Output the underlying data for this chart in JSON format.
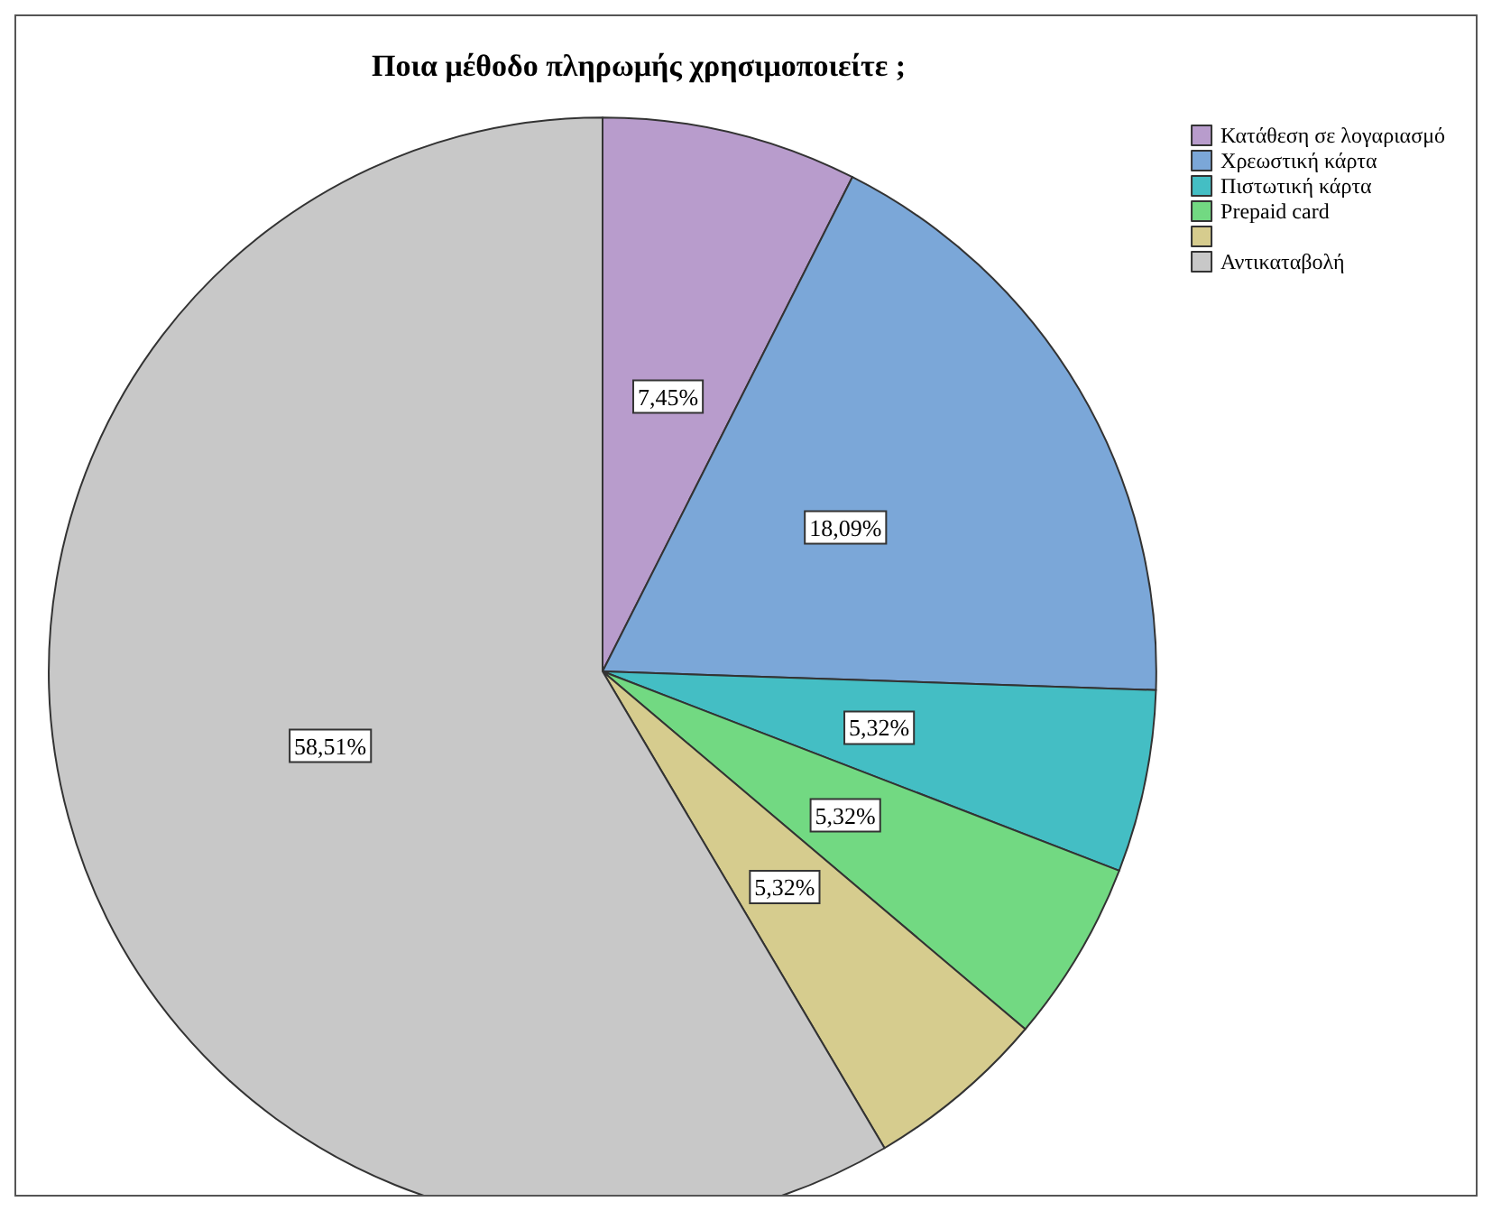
{
  "chart_data": {
    "type": "pie",
    "title": "Ποια μέθοδο πληρωμής χρησιμοποιείτε ;",
    "categories": [
      "Κατάθεση σε λογαριασμό",
      "Χρεωστική κάρτα",
      "Πιστωτική κάρτα",
      "Prepaid card",
      null,
      "Αντικαταβολή"
    ],
    "values": [
      7.45,
      18.09,
      5.32,
      5.32,
      5.32,
      58.51
    ],
    "colors": [
      "#b89ccc",
      "#7ba7d8",
      "#44bec4",
      "#72d982",
      "#d6cc8e",
      "#c8c8c8"
    ],
    "value_labels": [
      "7,45%",
      "18,09%",
      "5,32%",
      "5,32%",
      "5,32%",
      "58,51%"
    ],
    "legend": "top right"
  }
}
